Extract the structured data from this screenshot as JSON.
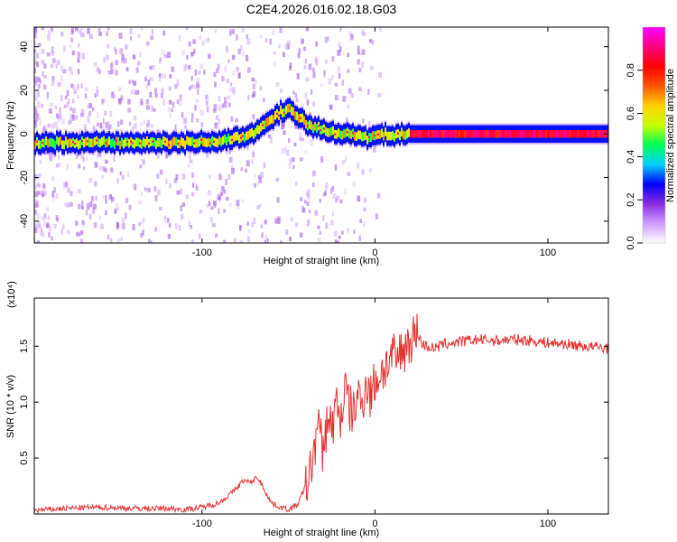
{
  "title": "C2E4.2026.016.02.18.G03",
  "chart_data": [
    {
      "type": "heatmap",
      "name": "spectrogram",
      "xlabel": "Height of straight line (km)",
      "ylabel": "Frequency (Hz)",
      "xlim": [
        -197,
        135
      ],
      "ylim": [
        -50,
        49
      ],
      "xticks": [
        -100,
        0,
        100
      ],
      "xtick_labels": [
        "-100",
        "0",
        "100"
      ],
      "yticks": [
        -40,
        -20,
        0,
        20,
        40
      ],
      "ytick_labels": [
        "-40",
        "-20",
        "0",
        "20",
        "40"
      ],
      "ridge": {
        "x": [
          -195,
          -160,
          -130,
          -110,
          -90,
          -80,
          -70,
          -62,
          -55,
          -50,
          -45,
          -40,
          -35,
          -30,
          -25,
          -20,
          -15,
          -10,
          -5,
          0,
          5,
          10,
          15,
          20,
          50,
          100,
          135
        ],
        "y": [
          -4,
          -4,
          -4,
          -4,
          -3,
          -2,
          1,
          6,
          10,
          11,
          8,
          5,
          3,
          2,
          1,
          0,
          0,
          -1,
          -2,
          0,
          0,
          -1,
          0,
          0,
          0,
          0,
          0
        ]
      },
      "colorbar": {
        "label": "Normalized spectral amplitude",
        "range": [
          0,
          1
        ],
        "ticks": [
          0.0,
          0.2,
          0.4,
          0.6,
          0.8
        ],
        "tick_labels": [
          "0.0",
          "0.2",
          "0.4",
          "0.6",
          "0.8"
        ],
        "colors": [
          "#ffffff",
          "#cf9cff",
          "#8a2be2",
          "#0000ff",
          "#00d0ff",
          "#00ff55",
          "#c8ff00",
          "#ffd000",
          "#ff5500",
          "#ff0000",
          "#ff0080",
          "#ff00ff"
        ]
      }
    },
    {
      "type": "line",
      "name": "snr",
      "xlabel": "Height of straight line (km)",
      "ylabel": "SNR (10 * v/v)",
      "scale_label": "(x10⁴)",
      "xlim": [
        -197,
        135
      ],
      "ylim": [
        0,
        1.93
      ],
      "xticks": [
        -100,
        0,
        100
      ],
      "xtick_labels": [
        "-100",
        "0",
        "100"
      ],
      "yticks": [
        0.5,
        1.0,
        1.5
      ],
      "ytick_labels": [
        "0.5",
        "1.0",
        "1.5"
      ],
      "series": [
        {
          "name": "SNR",
          "color": "#e83030",
          "x": [
            -197,
            -180,
            -160,
            -140,
            -120,
            -110,
            -100,
            -90,
            -82,
            -76,
            -72,
            -68,
            -65,
            -60,
            -55,
            -50,
            -45,
            -40,
            -37,
            -35,
            -33,
            -30,
            -27,
            -25,
            -22,
            -20,
            -17,
            -15,
            -12,
            -10,
            -8,
            -5,
            -3,
            0,
            3,
            5,
            8,
            10,
            13,
            15,
            18,
            20,
            23,
            25,
            27,
            30,
            35,
            40,
            50,
            60,
            70,
            80,
            90,
            100,
            110,
            120,
            130,
            135
          ],
          "y": [
            0.03,
            0.05,
            0.06,
            0.05,
            0.05,
            0.04,
            0.06,
            0.1,
            0.2,
            0.3,
            0.28,
            0.33,
            0.25,
            0.1,
            0.06,
            0.04,
            0.08,
            0.25,
            0.4,
            0.6,
            0.8,
            0.55,
            0.9,
            0.75,
            1.0,
            0.85,
            1.12,
            0.95,
            0.9,
            1.1,
            0.95,
            1.2,
            1.05,
            1.18,
            1.25,
            1.3,
            1.35,
            1.4,
            1.38,
            1.45,
            1.5,
            1.55,
            1.6,
            1.62,
            1.52,
            1.5,
            1.48,
            1.52,
            1.54,
            1.56,
            1.55,
            1.56,
            1.55,
            1.53,
            1.52,
            1.5,
            1.49,
            1.48
          ]
        }
      ]
    }
  ]
}
